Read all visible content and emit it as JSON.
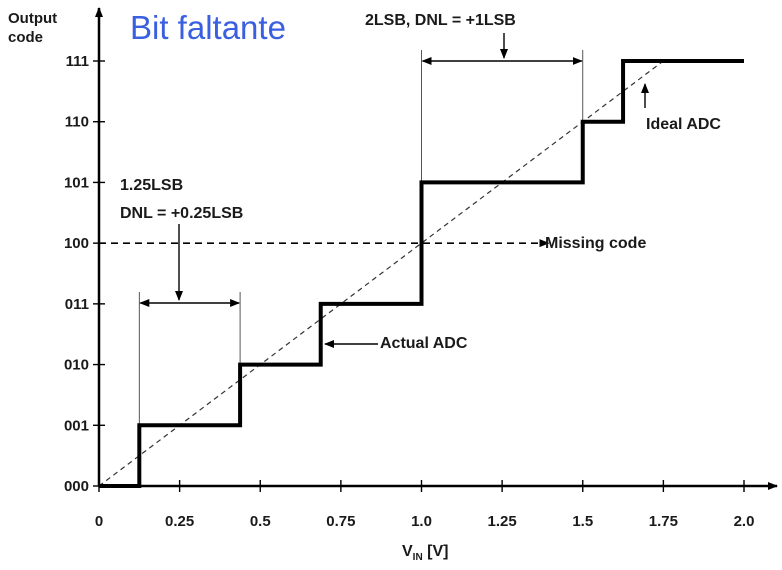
{
  "title": "Bit faltante",
  "chart_data": {
    "type": "line",
    "ylabel_line1": "Output",
    "ylabel_line2": "code",
    "xlabel_main": "V",
    "xlabel_sub": "IN",
    "xlabel_unit": " [V]",
    "x_ticks": [
      "0",
      "0.25",
      "0.5",
      "0.75",
      "1.0",
      "1.25",
      "1.5",
      "1.75",
      "2.0"
    ],
    "x_tick_values": [
      0,
      0.25,
      0.5,
      0.75,
      1.0,
      1.25,
      1.5,
      1.75,
      2.0
    ],
    "y_ticks": [
      "000",
      "001",
      "010",
      "011",
      "100",
      "101",
      "110",
      "111"
    ],
    "xlim": [
      0,
      2.0
    ],
    "ylim": [
      0,
      7
    ],
    "series": [
      {
        "name": "Actual ADC",
        "style": "thick-solid",
        "x": [
          0,
          0.125,
          0.125,
          0.4375,
          0.4375,
          0.6875,
          0.6875,
          1.0,
          1.0,
          1.5,
          1.5,
          1.625,
          1.625,
          2.0
        ],
        "y": [
          0,
          0,
          1,
          1,
          2,
          2,
          3,
          3,
          5,
          5,
          6,
          6,
          7,
          7
        ]
      },
      {
        "name": "Ideal ADC",
        "style": "dashed",
        "x": [
          0,
          1.75
        ],
        "y": [
          0,
          7
        ]
      }
    ],
    "missing_code_line": {
      "y": 4,
      "x": [
        0,
        1.375
      ]
    },
    "annotations": {
      "dnl1_line1": "1.25LSB",
      "dnl1_line2": "DNL = +0.25LSB",
      "dnl1_range": [
        0.125,
        0.4375
      ],
      "dnl2": "2LSB, DNL = +1LSB",
      "dnl2_range": [
        1.0,
        1.5
      ],
      "missing_code": "Missing code",
      "actual_adc": "Actual ADC",
      "ideal_adc": "Ideal ADC"
    }
  }
}
